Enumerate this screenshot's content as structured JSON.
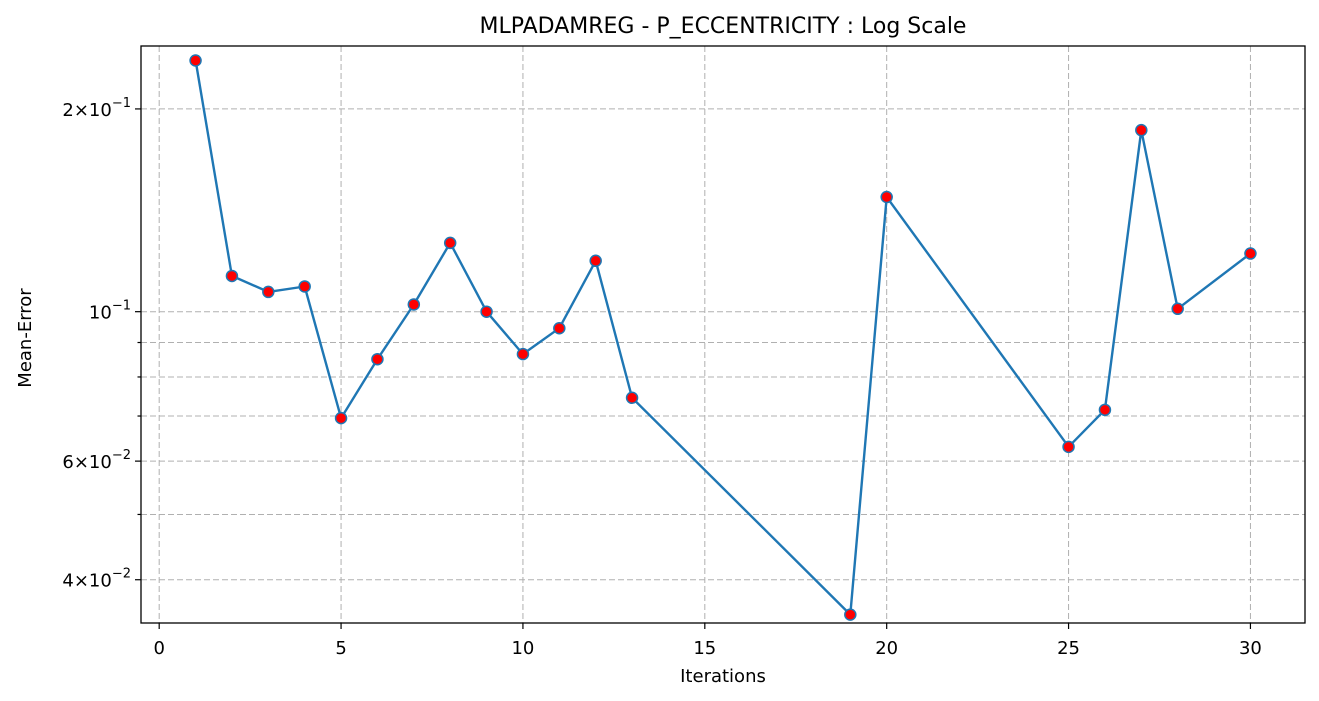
{
  "chart_data": {
    "type": "line",
    "title": "MLPADAMREG - P_ECCENTRICITY : Log Scale",
    "xlabel": "Iterations",
    "ylabel": "Mean-Error",
    "xlim": [
      -0.5,
      31.5
    ],
    "ylim": [
      0.0345,
      0.248
    ],
    "yscale": "log",
    "grid": true,
    "x_ticks": [
      0,
      5,
      10,
      15,
      20,
      25,
      30
    ],
    "y_major_ticks": [
      {
        "value": 0.2,
        "mantissa": "2",
        "exponent": "−1"
      },
      {
        "value": 0.1,
        "mantissa": "",
        "exponent": "−1"
      },
      {
        "value": 0.06,
        "mantissa": "6",
        "exponent": "−2"
      },
      {
        "value": 0.04,
        "mantissa": "4",
        "exponent": "−2"
      }
    ],
    "y_minor_ticks": [
      0.09,
      0.08,
      0.07,
      0.05
    ],
    "line_color": "#1f77b4",
    "marker_color": "#ff0000",
    "marker_edge_color": "#1f77b4",
    "x": [
      1,
      2,
      3,
      4,
      5,
      6,
      7,
      8,
      9,
      10,
      11,
      12,
      13,
      19,
      20,
      25,
      26,
      27,
      28,
      30
    ],
    "y": [
      0.236,
      0.113,
      0.107,
      0.109,
      0.0695,
      0.085,
      0.1025,
      0.1265,
      0.1,
      0.0865,
      0.0945,
      0.119,
      0.0745,
      0.0355,
      0.148,
      0.063,
      0.0715,
      0.186,
      0.101,
      0.122
    ]
  }
}
